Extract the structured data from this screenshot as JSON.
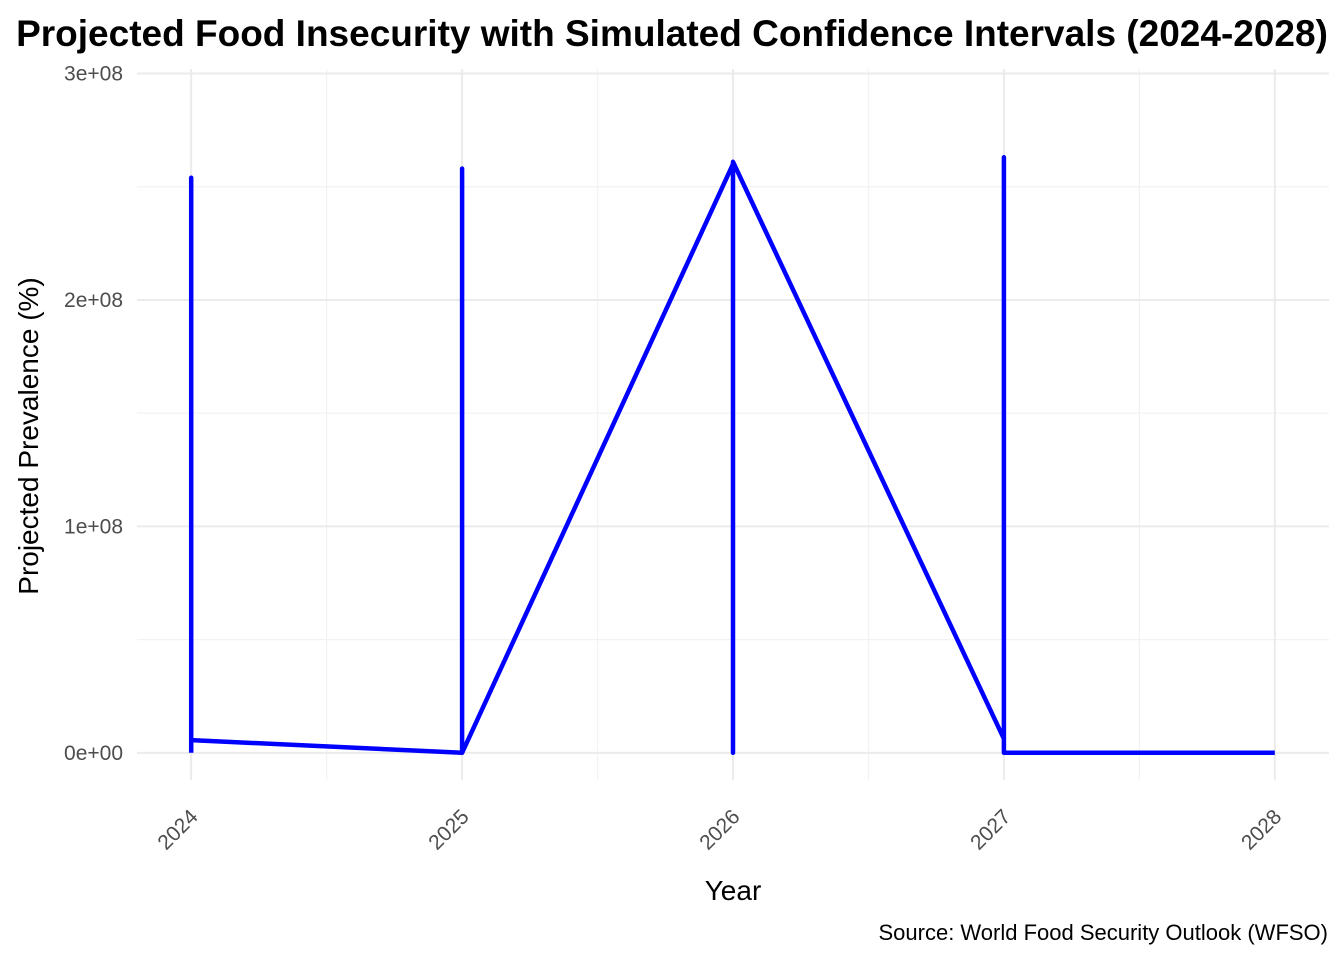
{
  "chart_data": {
    "type": "line",
    "title": "Projected Food Insecurity with Simulated Confidence Intervals (2024-2028)",
    "xlabel": "Year",
    "ylabel": "Projected Prevalence (%)",
    "caption": "Source: World Food Security Outlook (WFSO)",
    "x_ticks": [
      "2024",
      "2025",
      "2026",
      "2027",
      "2028"
    ],
    "y_ticks": [
      "0e+00",
      "1e+08",
      "2e+08",
      "3e+08"
    ],
    "xlim": [
      2023.8,
      2028.2
    ],
    "ylim": [
      -12000000,
      302000000
    ],
    "grid": true,
    "legend": "none",
    "line_color": "#0000ff",
    "series": [
      {
        "x": [
          2024,
          2024,
          2024,
          2025,
          2025,
          2025,
          2025,
          2026,
          2026,
          2026,
          2026,
          2027,
          2027,
          2027,
          2027,
          2028,
          2028
        ],
        "y": [
          0,
          254000000,
          5600000,
          0,
          258000000,
          5800000,
          0,
          260000000,
          6000000,
          0,
          261000000,
          6200000,
          0,
          263000000,
          0,
          0,
          0
        ]
      }
    ]
  }
}
